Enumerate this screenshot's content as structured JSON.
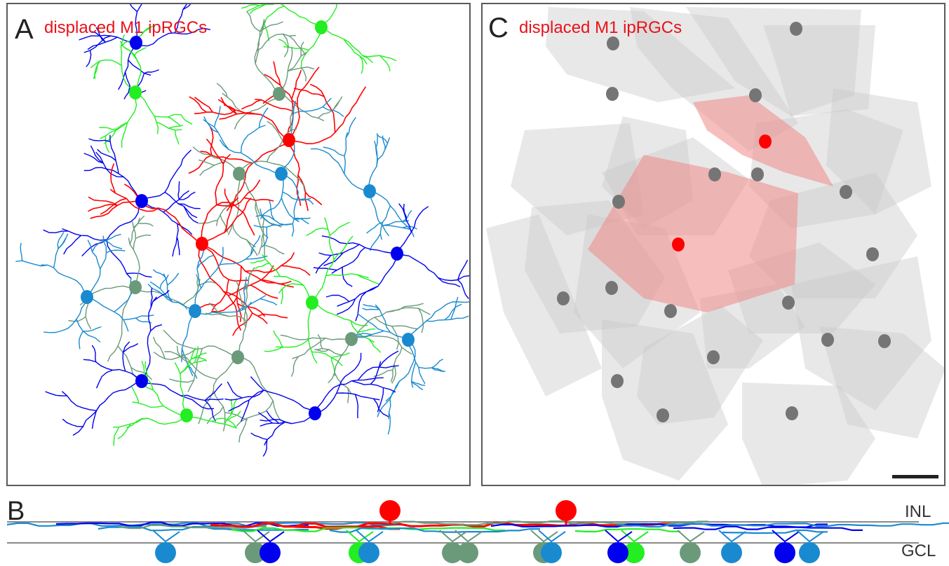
{
  "figure": {
    "panels": [
      {
        "letter": "A",
        "title": "displaced M1 ipRGCs"
      },
      {
        "letter": "B"
      },
      {
        "letter": "C",
        "title": "displaced M1 ipRGCs"
      }
    ],
    "layers": {
      "top": "INL",
      "bottom": "GCL"
    },
    "colors": {
      "displaced_m1": "#ff0000",
      "blue": "#0000ee",
      "cyan_blue": "#1a8ad0",
      "green": "#22ee22",
      "gray_green": "#6a9a7a",
      "territory_gray": "#c8c8c8",
      "territory_red": "#f08888",
      "soma_gray": "#757575",
      "frame": "#5a5a5a",
      "scale_bar": "#222222"
    },
    "scale_bar": "scale-bar"
  }
}
